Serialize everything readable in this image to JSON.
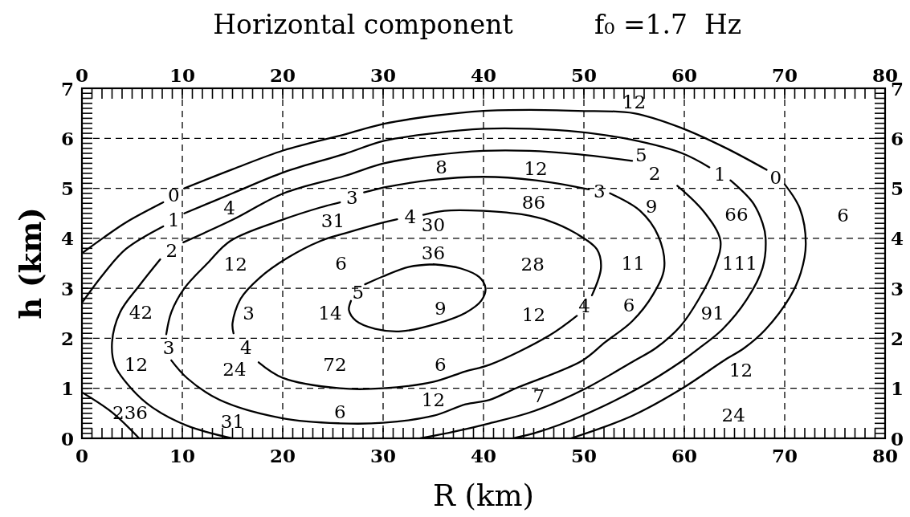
{
  "chart_data": {
    "type": "line",
    "title": "Horizontal component",
    "subtitle": "f₀ =1.7  Hz",
    "xlabel": "R (km)",
    "ylabel": "h (km)",
    "xlim": [
      0,
      80
    ],
    "xticks": [
      0,
      {
        "value": 1,
        "label": null
      },
      {
        "value": 2,
        "label": null
      },
      {
        "value": 3,
        "label": null
      },
      {
        "value": 4,
        "label": null
      },
      {
        "value": 5,
        "label": null
      },
      {
        "value": 6,
        "label": null
      },
      {
        "value": 7,
        "label": null
      },
      {
        "value": 8,
        "label": null
      },
      {
        "value": 9,
        "label": null
      },
      10,
      {
        "value": 11,
        "label": null
      },
      {
        "value": 12,
        "label": null
      },
      {
        "value": 13,
        "label": null
      },
      {
        "value": 14,
        "label": null
      },
      {
        "value": 15,
        "label": null
      },
      {
        "value": 16,
        "label": null
      },
      {
        "value": 17,
        "label": null
      },
      {
        "value": 18,
        "label": null
      },
      {
        "value": 19,
        "label": null
      },
      20,
      {
        "value": 21,
        "label": null
      },
      {
        "value": 22,
        "label": null
      },
      {
        "value": 23,
        "label": null
      },
      {
        "value": 24,
        "label": null
      },
      {
        "value": 25,
        "label": null
      },
      {
        "value": 26,
        "label": null
      },
      {
        "value": 27,
        "label": null
      },
      {
        "value": 28,
        "label": null
      },
      {
        "value": 29,
        "label": null
      },
      30,
      {
        "value": 31,
        "label": null
      },
      {
        "value": 32,
        "label": null
      },
      {
        "value": 33,
        "label": null
      },
      {
        "value": 34,
        "label": null
      },
      {
        "value": 35,
        "label": null
      },
      {
        "value": 36,
        "label": null
      },
      {
        "value": 37,
        "label": null
      },
      {
        "value": 38,
        "label": null
      },
      {
        "value": 39,
        "label": null
      },
      40,
      {
        "value": 41,
        "label": null
      },
      {
        "value": 42,
        "label": null
      },
      {
        "value": 43,
        "label": null
      },
      {
        "value": 44,
        "label": null
      },
      {
        "value": 45,
        "label": null
      },
      {
        "value": 46,
        "label": null
      },
      {
        "value": 47,
        "label": null
      },
      {
        "value": 48,
        "label": null
      },
      {
        "value": 49,
        "label": null
      },
      50,
      {
        "value": 51,
        "label": null
      },
      {
        "value": 52,
        "label": null
      },
      {
        "value": 53,
        "label": null
      },
      {
        "value": 54,
        "label": null
      },
      {
        "value": 55,
        "label": null
      },
      {
        "value": 56,
        "label": null
      },
      {
        "value": 57,
        "label": null
      },
      {
        "value": 58,
        "label": null
      },
      {
        "value": 59,
        "label": null
      },
      60,
      {
        "value": 61,
        "label": null
      },
      {
        "value": 62,
        "label": null
      },
      {
        "value": 63,
        "label": null
      },
      {
        "value": 64,
        "label": null
      },
      {
        "value": 65,
        "label": null
      },
      {
        "value": 66,
        "label": null
      },
      {
        "value": 67,
        "label": null
      },
      {
        "value": 68,
        "label": null
      },
      {
        "value": 69,
        "label": null
      },
      70,
      {
        "value": 71,
        "label": null
      },
      {
        "value": 72,
        "label": null
      },
      {
        "value": 73,
        "label": null
      },
      {
        "value": 74,
        "label": null
      },
      {
        "value": 75,
        "label": null
      },
      {
        "value": 76,
        "label": null
      },
      {
        "value": 77,
        "label": null
      },
      {
        "value": 78,
        "label": null
      },
      {
        "value": 79,
        "label": null
      },
      80
    ],
    "x2lim": [
      0,
      80
    ],
    "x2ticks": [
      0,
      {
        "value": 1,
        "label": null
      },
      {
        "value": 2,
        "label": null
      },
      {
        "value": 3,
        "label": null
      },
      {
        "value": 4,
        "label": null
      },
      {
        "value": 5,
        "label": null
      },
      {
        "value": 6,
        "label": null
      },
      {
        "value": 7,
        "label": null
      },
      {
        "value": 8,
        "label": null
      },
      {
        "value": 9,
        "label": null
      },
      10,
      {
        "value": 11,
        "label": null
      },
      {
        "value": 12,
        "label": null
      },
      {
        "value": 13,
        "label": null
      },
      {
        "value": 14,
        "label": null
      },
      {
        "value": 15,
        "label": null
      },
      {
        "value": 16,
        "label": null
      },
      {
        "value": 17,
        "label": null
      },
      {
        "value": 18,
        "label": null
      },
      {
        "value": 19,
        "label": null
      },
      20,
      {
        "value": 21,
        "label": null
      },
      {
        "value": 22,
        "label": null
      },
      {
        "value": 23,
        "label": null
      },
      {
        "value": 24,
        "label": null
      },
      {
        "value": 25,
        "label": null
      },
      {
        "value": 26,
        "label": null
      },
      {
        "value": 27,
        "label": null
      },
      {
        "value": 28,
        "label": null
      },
      {
        "value": 29,
        "label": null
      },
      30,
      {
        "value": 31,
        "label": null
      },
      {
        "value": 32,
        "label": null
      },
      {
        "value": 33,
        "label": null
      },
      {
        "value": 34,
        "label": null
      },
      {
        "value": 35,
        "label": null
      },
      {
        "value": 36,
        "label": null
      },
      {
        "value": 37,
        "label": null
      },
      {
        "value": 38,
        "label": null
      },
      {
        "value": 39,
        "label": null
      },
      40,
      {
        "value": 41,
        "label": null
      },
      {
        "value": 42,
        "label": null
      },
      {
        "value": 43,
        "label": null
      },
      {
        "value": 44,
        "label": null
      },
      {
        "value": 45,
        "label": null
      },
      {
        "value": 46,
        "label": null
      },
      {
        "value": 47,
        "label": null
      },
      {
        "value": 48,
        "label": null
      },
      {
        "value": 49,
        "label": null
      },
      50,
      {
        "value": 51,
        "label": null
      },
      {
        "value": 52,
        "label": null
      },
      {
        "value": 53,
        "label": null
      },
      {
        "value": 54,
        "label": null
      },
      {
        "value": 55,
        "label": null
      },
      {
        "value": 56,
        "label": null
      },
      {
        "value": 57,
        "label": null
      },
      {
        "value": 58,
        "label": null
      },
      {
        "value": 59,
        "label": null
      },
      60,
      {
        "value": 61,
        "label": null
      },
      {
        "value": 62,
        "label": null
      },
      {
        "value": 63,
        "label": null
      },
      {
        "value": 64,
        "label": null
      },
      {
        "value": 65,
        "label": null
      },
      {
        "value": 66,
        "label": null
      },
      {
        "value": 67,
        "label": null
      },
      {
        "value": 68,
        "label": null
      },
      {
        "value": 69,
        "label": null
      },
      70,
      {
        "value": 71,
        "label": null
      },
      {
        "value": 72,
        "label": null
      },
      {
        "value": 73,
        "label": null
      },
      {
        "value": 74,
        "label": null
      },
      {
        "value": 75,
        "label": null
      },
      {
        "value": 76,
        "label": null
      },
      {
        "value": 77,
        "label": null
      },
      {
        "value": 78,
        "label": null
      },
      {
        "value": 79,
        "label": null
      },
      80
    ],
    "ylim": [
      0,
      7
    ],
    "yticks": [
      0,
      {
        "value": 0.1,
        "label": null
      },
      {
        "value": 0.2,
        "label": null
      },
      {
        "value": 0.3,
        "label": null
      },
      {
        "value": 0.4,
        "label": null
      },
      {
        "value": 0.5,
        "label": null
      },
      {
        "value": 0.6,
        "label": null
      },
      {
        "value": 0.7,
        "label": null
      },
      {
        "value": 0.8,
        "label": null
      },
      {
        "value": 0.9,
        "label": null
      },
      1,
      {
        "value": 1.1,
        "label": null
      },
      {
        "value": 1.2,
        "label": null
      },
      {
        "value": 1.3,
        "label": null
      },
      {
        "value": 1.4,
        "label": null
      },
      {
        "value": 1.5,
        "label": null
      },
      {
        "value": 1.6,
        "label": null
      },
      {
        "value": 1.7,
        "label": null
      },
      {
        "value": 1.8,
        "label": null
      },
      {
        "value": 1.9,
        "label": null
      },
      2,
      {
        "value": 2.1,
        "label": null
      },
      {
        "value": 2.2,
        "label": null
      },
      {
        "value": 2.3,
        "label": null
      },
      {
        "value": 2.4,
        "label": null
      },
      {
        "value": 2.5,
        "label": null
      },
      {
        "value": 2.6,
        "label": null
      },
      {
        "value": 2.7,
        "label": null
      },
      {
        "value": 2.8,
        "label": null
      },
      {
        "value": 2.9,
        "label": null
      },
      3,
      {
        "value": 3.1,
        "label": null
      },
      {
        "value": 3.2,
        "label": null
      },
      {
        "value": 3.3,
        "label": null
      },
      {
        "value": 3.4,
        "label": null
      },
      {
        "value": 3.5,
        "label": null
      },
      {
        "value": 3.6,
        "label": null
      },
      {
        "value": 3.7,
        "label": null
      },
      {
        "value": 3.8,
        "label": null
      },
      {
        "value": 3.9,
        "label": null
      },
      4,
      {
        "value": 4.1,
        "label": null
      },
      {
        "value": 4.2,
        "label": null
      },
      {
        "value": 4.3,
        "label": null
      },
      {
        "value": 4.4,
        "label": null
      },
      {
        "value": 4.5,
        "label": null
      },
      {
        "value": 4.6,
        "label": null
      },
      {
        "value": 4.7,
        "label": null
      },
      {
        "value": 4.8,
        "label": null
      },
      {
        "value": 4.9,
        "label": null
      },
      5,
      {
        "value": 5.1,
        "label": null
      },
      {
        "value": 5.2,
        "label": null
      },
      {
        "value": 5.3,
        "label": null
      },
      {
        "value": 5.4,
        "label": null
      },
      {
        "value": 5.5,
        "label": null
      },
      {
        "value": 5.6,
        "label": null
      },
      {
        "value": 5.7,
        "label": null
      },
      {
        "value": 5.8,
        "label": null
      },
      {
        "value": 5.9,
        "label": null
      },
      6,
      {
        "value": 6.1,
        "label": null
      },
      {
        "value": 6.2,
        "label": null
      },
      {
        "value": 6.3,
        "label": null
      },
      {
        "value": 6.4,
        "label": null
      },
      {
        "value": 6.5,
        "label": null
      },
      {
        "value": 6.6,
        "label": null
      },
      {
        "value": 6.7,
        "label": null
      },
      {
        "value": 6.8,
        "label": null
      },
      {
        "value": 6.9,
        "label": null
      },
      7
    ],
    "y2lim": [
      0,
      7
    ],
    "y2ticks": [
      0,
      {
        "value": 0.1,
        "label": null
      },
      {
        "value": 0.2,
        "label": null
      },
      {
        "value": 0.3,
        "label": null
      },
      {
        "value": 0.4,
        "label": null
      },
      {
        "value": 0.5,
        "label": null
      },
      {
        "value": 0.6,
        "label": null
      },
      {
        "value": 0.7,
        "label": null
      },
      {
        "value": 0.8,
        "label": null
      },
      {
        "value": 0.9,
        "label": null
      },
      1,
      {
        "value": 1.1,
        "label": null
      },
      {
        "value": 1.2,
        "label": null
      },
      {
        "value": 1.3,
        "label": null
      },
      {
        "value": 1.4,
        "label": null
      },
      {
        "value": 1.5,
        "label": null
      },
      {
        "value": 1.6,
        "label": null
      },
      {
        "value": 1.7,
        "label": null
      },
      {
        "value": 1.8,
        "label": null
      },
      {
        "value": 1.9,
        "label": null
      },
      2,
      {
        "value": 2.1,
        "label": null
      },
      {
        "value": 2.2,
        "label": null
      },
      {
        "value": 2.3,
        "label": null
      },
      {
        "value": 2.4,
        "label": null
      },
      {
        "value": 2.5,
        "label": null
      },
      {
        "value": 2.6,
        "label": null
      },
      {
        "value": 2.7,
        "label": null
      },
      {
        "value": 2.8,
        "label": null
      },
      {
        "value": 2.9,
        "label": null
      },
      3,
      {
        "value": 3.1,
        "label": null
      },
      {
        "value": 3.2,
        "label": null
      },
      {
        "value": 3.3,
        "label": null
      },
      {
        "value": 3.4,
        "label": null
      },
      {
        "value": 3.5,
        "label": null
      },
      {
        "value": 3.6,
        "label": null
      },
      {
        "value": 3.7,
        "label": null
      },
      {
        "value": 3.8,
        "label": null
      },
      {
        "value": 3.9,
        "label": null
      },
      4,
      {
        "value": 4.1,
        "label": null
      },
      {
        "value": 4.2,
        "label": null
      },
      {
        "value": 4.3,
        "label": null
      },
      {
        "value": 4.4,
        "label": null
      },
      {
        "value": 4.5,
        "label": null
      },
      {
        "value": 4.6,
        "label": null
      },
      {
        "value": 4.7,
        "label": null
      },
      {
        "value": 4.8,
        "label": null
      },
      {
        "value": 4.9,
        "label": null
      },
      5,
      {
        "value": 5.1,
        "label": null
      },
      {
        "value": 5.2,
        "label": null
      },
      {
        "value": 5.3,
        "label": null
      },
      {
        "value": 5.4,
        "label": null
      },
      {
        "value": 5.5,
        "label": null
      },
      {
        "value": 5.6,
        "label": null
      },
      {
        "value": 5.7,
        "label": null
      },
      {
        "value": 5.8,
        "label": null
      },
      {
        "value": 5.9,
        "label": null
      },
      6,
      {
        "value": 6.1,
        "label": null
      },
      {
        "value": 6.2,
        "label": null
      },
      {
        "value": 6.3,
        "label": null
      },
      {
        "value": 6.4,
        "label": null
      },
      {
        "value": 6.5,
        "label": null
      },
      {
        "value": 6.6,
        "label": null
      },
      {
        "value": 6.7,
        "label": null
      },
      {
        "value": 6.8,
        "label": null
      },
      {
        "value": 6.9,
        "label": null
      },
      7
    ],
    "grid": true,
    "series": [
      {
        "name": "0",
        "color": "#000000",
        "x": [
          0,
          2.2,
          4.4,
          8.1,
          null,
          10.2,
          15,
          20.1,
          26.2,
          30.1,
          35,
          40,
          44.6,
          49.4,
          55,
          59.8,
          64.1,
          68.2,
          null,
          70,
          71.5,
          72.1,
          71.6,
          70.5,
          68.1,
          66,
          63.9,
          59.8,
          54.8,
          48.7
        ],
        "values": [
          3.7,
          4.02,
          4.32,
          4.72,
          null,
          5.0,
          5.38,
          5.76,
          6.08,
          6.29,
          6.45,
          6.55,
          6.57,
          6.55,
          6.5,
          6.2,
          5.81,
          5.37,
          null,
          5.08,
          4.6,
          3.89,
          3.31,
          2.82,
          2.18,
          1.81,
          1.55,
          1.0,
          0.45,
          0
        ]
      },
      {
        "name": "1",
        "color": "#000000",
        "x": [
          0,
          2.2,
          4.4,
          8.1,
          null,
          10.2,
          15,
          20.1,
          26.2,
          30.1,
          35,
          40,
          44.6,
          49.4,
          54.8,
          59.8,
          62.5,
          null,
          64.6,
          66.8,
          67.8,
          68.1,
          67.8,
          66.2,
          63.8,
          61.2,
          59.8,
          55.4,
          49.8,
          45.5,
          42.9,
          null,
          0,
          3.0,
          5.7
        ],
        "values": [
          2.71,
          3.3,
          3.79,
          4.24,
          null,
          4.5,
          4.9,
          5.32,
          5.69,
          5.95,
          6.1,
          6.19,
          6.19,
          6.13,
          5.97,
          5.7,
          5.42,
          null,
          5.16,
          4.72,
          4.3,
          4.0,
          3.41,
          2.77,
          2.18,
          1.76,
          1.55,
          1.0,
          0.45,
          0.13,
          0,
          null,
          0.92,
          0.52,
          0
        ]
      },
      {
        "name": "2",
        "color": "#000000",
        "x": [
          15,
          10.5,
          7,
          4.9,
          3.3,
          3.0,
          3.8,
          5.7,
          7.8,
          null,
          10.1,
          15,
          20.1,
          26.2,
          30.1,
          35,
          40,
          44.6,
          49.4,
          54.8,
          null,
          59.3,
          62,
          63.6,
          63,
          61.4,
          59.6,
          57.2,
          55,
          50.2,
          45.1,
          40.6,
          37,
          33.7
        ],
        "values": [
          0,
          0.25,
          0.62,
          1.0,
          1.45,
          1.92,
          2.52,
          3.05,
          3.58,
          null,
          3.92,
          4.37,
          4.9,
          5.25,
          5.5,
          5.66,
          5.75,
          5.75,
          5.68,
          5.55,
          null,
          5.05,
          4.52,
          3.95,
          3.41,
          2.77,
          2.24,
          1.81,
          1.55,
          1.0,
          0.55,
          0.3,
          0.13,
          0
        ]
      },
      {
        "name": "3",
        "color": "#000000",
        "x": [
          30.1,
          34.5,
          40,
          45.2,
          50.5,
          null,
          52.6,
          55.6,
          57.4,
          58,
          56.9,
          54.8,
          52.1,
          49.8,
          43.2,
          40.6,
          38.2,
          35,
          30,
          25.7,
          20,
          13.7,
          10.5,
          8.9,
          null,
          8.4,
          8.9,
          10.2,
          12.5,
          14.8,
          20.1,
          23.8,
          25.7,
          null,
          28.1,
          30.1
        ],
        "values": [
          5.02,
          5.16,
          5.23,
          5.16,
          4.98,
          null,
          4.9,
          4.55,
          4.05,
          3.41,
          2.88,
          2.34,
          1.92,
          1.55,
          1.0,
          0.77,
          0.68,
          0.45,
          0.31,
          0.3,
          0.4,
          0.77,
          1.2,
          1.56,
          null,
          2.08,
          2.52,
          3.0,
          3.5,
          3.95,
          4.38,
          4.62,
          4.72,
          null,
          4.92,
          5.02
        ]
      },
      {
        "name": "4",
        "color": "#000000",
        "x": [
          40,
          43.8,
          46.5,
          49.2,
          51.3,
          51.7,
          50.8,
          null,
          49.3,
          46.5,
          40.6,
          38.2,
          35,
          30,
          25.7,
          20,
          17.6,
          null,
          15.1,
          15.0,
          15.8,
          17.7,
          20.4,
          23.8,
          26.2,
          30.1,
          31.4,
          null,
          34.0,
          36.1,
          40
        ],
        "values": [
          4.55,
          4.48,
          4.35,
          4.1,
          3.78,
          3.41,
          2.86,
          null,
          2.45,
          2.05,
          1.47,
          1.34,
          1.13,
          1.0,
          1.0,
          1.21,
          1.52,
          null,
          2.1,
          2.3,
          2.79,
          3.21,
          3.6,
          3.95,
          4.1,
          4.32,
          4.38,
          null,
          4.47,
          4.55,
          4.55
        ]
      },
      {
        "name": "5",
        "color": "#000000",
        "x": [
          35,
          37.7,
          39.6,
          40.2,
          39.8,
          38.2,
          35.3,
          31.8,
          29.2,
          27.3,
          26.6,
          26.8,
          null,
          28.2,
          30,
          32.6,
          35
        ],
        "values": [
          3.48,
          3.4,
          3.22,
          3.0,
          2.76,
          2.51,
          2.29,
          2.14,
          2.19,
          2.35,
          2.56,
          2.75,
          null,
          3.08,
          3.24,
          3.43,
          3.48
        ]
      }
    ],
    "annotations": [
      "12",
      "8",
      "12",
      "5",
      "4",
      "31",
      "30",
      "86",
      "9",
      "66",
      "6",
      "12",
      "6",
      "36",
      "28",
      "11",
      "111",
      "42",
      "3",
      "14",
      "9",
      "12",
      "6",
      "91",
      "12",
      "24",
      "72",
      "6",
      "12",
      "236",
      "31",
      "6",
      "12",
      "7",
      "24"
    ]
  }
}
